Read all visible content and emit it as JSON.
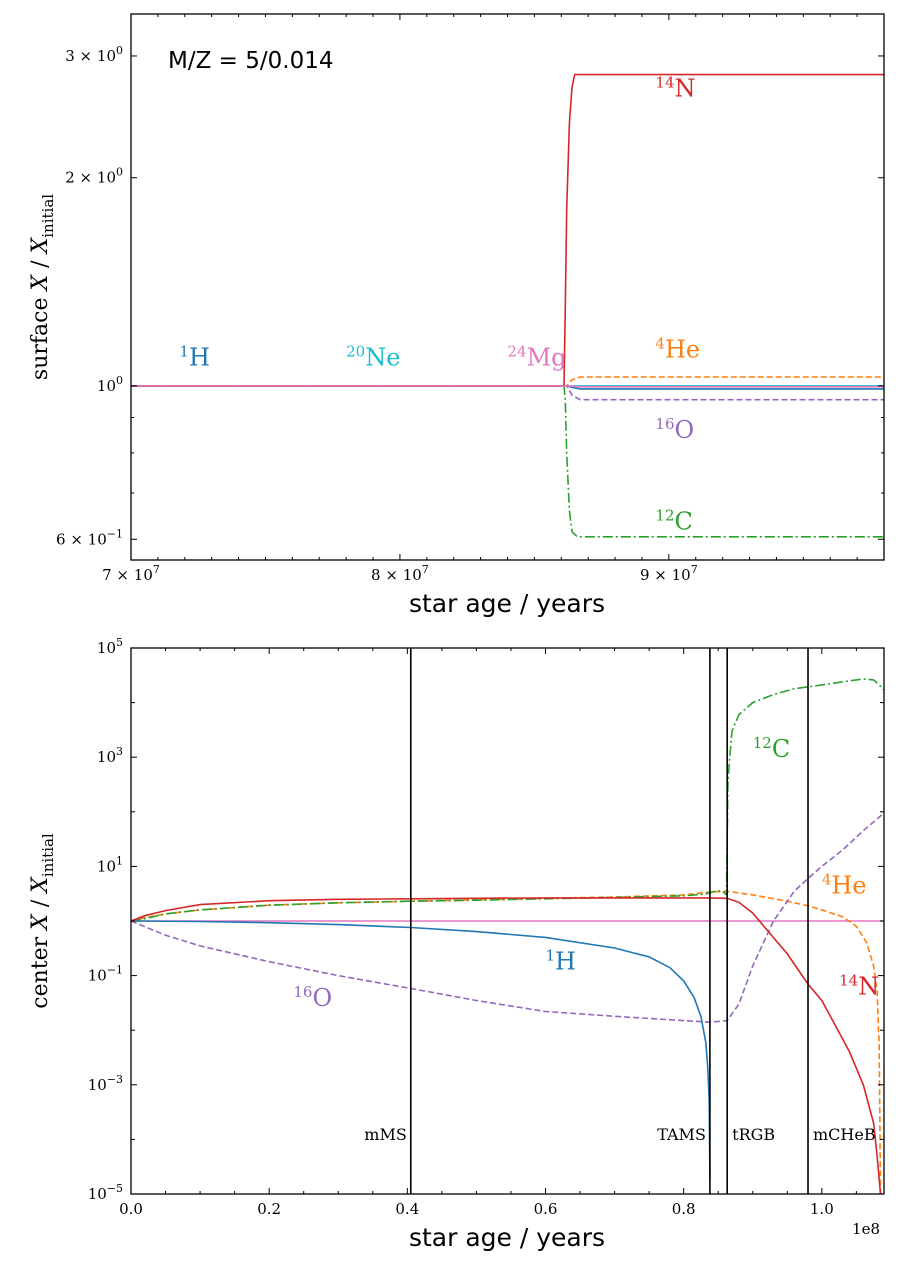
{
  "colors": {
    "H1": "#1f77b4",
    "He4": "#ff7f0e",
    "C12": "#2ca02c",
    "N14": "#d62728",
    "O16": "#9467bd",
    "Ne20": "#17becf",
    "Mg24": "#e377c2"
  },
  "chart_data": [
    {
      "type": "line",
      "title": "",
      "annotation": "M/Z = 5/0.014",
      "xlabel": "star age / years",
      "ylabel_main": "surface ",
      "ylabel_var": "X",
      "ylabel_slash": " / ",
      "ylabel_sub": "initial",
      "xscale": "linear",
      "yscale": "log",
      "xlim": [
        70000000,
        98000000
      ],
      "ylim": [
        0.56,
        3.45
      ],
      "xticks": [
        {
          "value": 70000000,
          "mant": "7 × 10",
          "exp": "7"
        },
        {
          "value": 80000000,
          "mant": "8 × 10",
          "exp": "7"
        },
        {
          "value": 90000000,
          "mant": "9 × 10",
          "exp": "7"
        }
      ],
      "yticks": [
        {
          "value": 0.6,
          "mant": "6 × 10",
          "exp": "−1"
        },
        {
          "value": 1,
          "mant": "10",
          "exp": "0"
        },
        {
          "value": 2,
          "mant": "2 × 10",
          "exp": "0"
        },
        {
          "value": 3,
          "mant": "3 × 10",
          "exp": "0"
        }
      ],
      "series": [
        {
          "name": "Ne20",
          "label_sup": "20",
          "label_base": "Ne",
          "label_at": [
            78000000,
            1.07
          ],
          "color_key": "Ne20",
          "dash": "",
          "x": [
            70000000,
            86200000,
            86600000,
            98000000
          ],
          "y": [
            1.0,
            1.0,
            1.0,
            1.0
          ]
        },
        {
          "name": "H1",
          "label_sup": "1",
          "label_base": "H",
          "label_at": [
            71800000,
            1.07
          ],
          "color_key": "H1",
          "dash": "",
          "x": [
            70000000,
            86200000,
            86400000,
            86700000,
            98000000
          ],
          "y": [
            1.0,
            1.0,
            0.995,
            0.99,
            0.99
          ]
        },
        {
          "name": "He4",
          "label_sup": "4",
          "label_base": "He",
          "label_at": [
            89500000,
            1.1
          ],
          "color_key": "He4",
          "dash": "6,3",
          "x": [
            70000000,
            86200000,
            86400000,
            86700000,
            98000000
          ],
          "y": [
            1.0,
            1.0,
            1.02,
            1.03,
            1.03
          ]
        },
        {
          "name": "O16",
          "label_sup": "16",
          "label_base": "O",
          "label_at": [
            89500000,
            0.84
          ],
          "color_key": "O16",
          "dash": "6,3",
          "x": [
            70000000,
            86200000,
            86400000,
            86700000,
            98000000
          ],
          "y": [
            1.0,
            1.0,
            0.97,
            0.955,
            0.955
          ]
        },
        {
          "name": "C12",
          "label_sup": "12",
          "label_base": "C",
          "label_at": [
            89500000,
            0.62
          ],
          "color_key": "C12",
          "dash": "10,3,2,3",
          "x": [
            70000000,
            86100000,
            86150000,
            86200000,
            86300000,
            86400000,
            86600000,
            98000000
          ],
          "y": [
            1.0,
            1.0,
            0.95,
            0.8,
            0.66,
            0.615,
            0.605,
            0.605
          ]
        },
        {
          "name": "N14",
          "label_sup": "14",
          "label_base": "N",
          "label_at": [
            89500000,
            2.62
          ],
          "color_key": "N14",
          "dash": "",
          "x": [
            70000000,
            86100000,
            86150000,
            86200000,
            86300000,
            86400000,
            86500000,
            98000000
          ],
          "y": [
            1.0,
            1.0,
            1.3,
            1.8,
            2.4,
            2.7,
            2.82,
            2.82
          ]
        },
        {
          "name": "Mg24",
          "label_sup": "24",
          "label_base": "Mg",
          "label_at": [
            84000000,
            1.07
          ],
          "color_key": "Mg24",
          "dash": "",
          "x": [
            70000000,
            86200000,
            86700000,
            98000000
          ],
          "y": [
            1.0,
            1.0,
            0.997,
            0.997
          ]
        }
      ]
    },
    {
      "type": "line",
      "title": "",
      "xlabel": "star age / years",
      "x_offset_text": "1e8",
      "ylabel_main": "center ",
      "ylabel_var": "X",
      "ylabel_slash": " / ",
      "ylabel_sub": "initial",
      "xscale": "linear",
      "yscale": "log",
      "xlim": [
        0,
        1.09
      ],
      "ylim": [
        1e-05,
        100000
      ],
      "xticks": [
        {
          "value": 0.0,
          "label": "0.0"
        },
        {
          "value": 0.2,
          "label": "0.2"
        },
        {
          "value": 0.4,
          "label": "0.4"
        },
        {
          "value": 0.6,
          "label": "0.6"
        },
        {
          "value": 0.8,
          "label": "0.8"
        },
        {
          "value": 1.0,
          "label": "1.0"
        }
      ],
      "yticks": [
        {
          "value": 1e-05,
          "mant": "10",
          "exp": "−5"
        },
        {
          "value": 0.001,
          "mant": "10",
          "exp": "−3"
        },
        {
          "value": 0.1,
          "mant": "10",
          "exp": "−1"
        },
        {
          "value": 10,
          "mant": "10",
          "exp": "1"
        },
        {
          "value": 1000,
          "mant": "10",
          "exp": "3"
        },
        {
          "value": 100000,
          "mant": "10",
          "exp": "5"
        }
      ],
      "vlines": [
        {
          "x": 0.405,
          "label": "mMS",
          "align": "end"
        },
        {
          "x": 0.838,
          "label": "TAMS",
          "align": "end"
        },
        {
          "x": 0.863,
          "label": "tRGB",
          "align": "start"
        },
        {
          "x": 0.98,
          "label": "mCHeB",
          "align": "start"
        }
      ],
      "series": [
        {
          "name": "Mg24",
          "label_sup": "",
          "label_base": "",
          "label_at": null,
          "color_key": "Mg24",
          "dash": "",
          "x": [
            0,
            1.09
          ],
          "y": [
            1.0,
            1.0
          ]
        },
        {
          "name": "H1",
          "label_sup": "1",
          "label_base": "H",
          "label_at": [
            0.6,
            0.13
          ],
          "color_key": "H1",
          "dash": "",
          "x": [
            0,
            0.1,
            0.2,
            0.3,
            0.405,
            0.5,
            0.6,
            0.7,
            0.75,
            0.78,
            0.8,
            0.815,
            0.825,
            0.832,
            0.835,
            0.837,
            0.838
          ],
          "y": [
            1.0,
            0.98,
            0.93,
            0.86,
            0.76,
            0.64,
            0.5,
            0.32,
            0.22,
            0.14,
            0.08,
            0.04,
            0.018,
            0.006,
            0.002,
            0.0005,
            2e-05
          ]
        },
        {
          "name": "He4",
          "label_sup": "4",
          "label_base": "He",
          "label_at": [
            1.0,
            3.2
          ],
          "color_key": "He4",
          "dash": "6,3",
          "x": [
            0,
            0.02,
            0.05,
            0.1,
            0.2,
            0.3,
            0.405,
            0.5,
            0.6,
            0.7,
            0.8,
            0.838,
            0.863,
            0.9,
            0.95,
            0.98,
            1.0,
            1.03,
            1.05,
            1.065,
            1.075,
            1.08,
            1.083,
            1.085
          ],
          "y": [
            1.0,
            1.15,
            1.35,
            1.6,
            1.95,
            2.15,
            2.3,
            2.45,
            2.6,
            2.75,
            3.0,
            3.4,
            3.5,
            3.0,
            2.3,
            1.9,
            1.6,
            1.2,
            0.8,
            0.4,
            0.15,
            0.05,
            0.005,
            1e-05
          ]
        },
        {
          "name": "O16",
          "label_sup": "16",
          "label_base": "O",
          "label_at": [
            0.235,
            0.028
          ],
          "color_key": "O16",
          "dash": "6,3",
          "x": [
            0,
            0.05,
            0.1,
            0.2,
            0.3,
            0.405,
            0.5,
            0.6,
            0.7,
            0.8,
            0.838,
            0.863,
            0.88,
            0.9,
            0.93,
            0.96,
            0.98,
            1.0,
            1.03,
            1.06,
            1.09
          ],
          "y": [
            1.0,
            0.55,
            0.35,
            0.18,
            0.1,
            0.058,
            0.035,
            0.022,
            0.018,
            0.015,
            0.014,
            0.015,
            0.03,
            0.15,
            1.0,
            3.5,
            6.0,
            10.0,
            20.0,
            45.0,
            95.0
          ]
        },
        {
          "name": "C12",
          "label_sup": "12",
          "label_base": "C",
          "label_at": [
            0.9,
            1000
          ],
          "color_key": "C12",
          "dash": "10,3,2,3",
          "x": [
            0,
            0.02,
            0.05,
            0.1,
            0.2,
            0.3,
            0.405,
            0.5,
            0.6,
            0.7,
            0.8,
            0.83,
            0.838,
            0.845,
            0.855,
            0.862,
            0.864,
            0.866,
            0.87,
            0.88,
            0.9,
            0.93,
            0.96,
            1.0,
            1.03,
            1.06,
            1.075,
            1.085,
            1.09
          ],
          "y": [
            1.0,
            1.1,
            1.35,
            1.6,
            1.95,
            2.15,
            2.3,
            2.4,
            2.55,
            2.7,
            2.9,
            3.1,
            3.3,
            3.5,
            3.6,
            3.0,
            300.0,
            800.0,
            3000.0,
            6000.0,
            10000.0,
            14000.0,
            18000.0,
            21000.0,
            24000.0,
            27000.0,
            26000.0,
            20000.0,
            17000.0
          ]
        },
        {
          "name": "N14",
          "label_sup": "14",
          "label_base": "N",
          "label_at": [
            1.025,
            0.045
          ],
          "color_key": "N14",
          "dash": "",
          "x": [
            0,
            0.02,
            0.05,
            0.1,
            0.2,
            0.3,
            0.405,
            0.5,
            0.6,
            0.7,
            0.8,
            0.838,
            0.863,
            0.88,
            0.9,
            0.92,
            0.95,
            0.98,
            1.0,
            1.02,
            1.04,
            1.06,
            1.075,
            1.08,
            1.085
          ],
          "y": [
            1.0,
            1.25,
            1.55,
            2.0,
            2.35,
            2.5,
            2.55,
            2.6,
            2.65,
            2.65,
            2.65,
            2.65,
            2.6,
            2.2,
            1.4,
            0.7,
            0.25,
            0.07,
            0.035,
            0.012,
            0.004,
            0.001,
            0.0002,
            5e-05,
            1e-05
          ]
        }
      ]
    }
  ]
}
